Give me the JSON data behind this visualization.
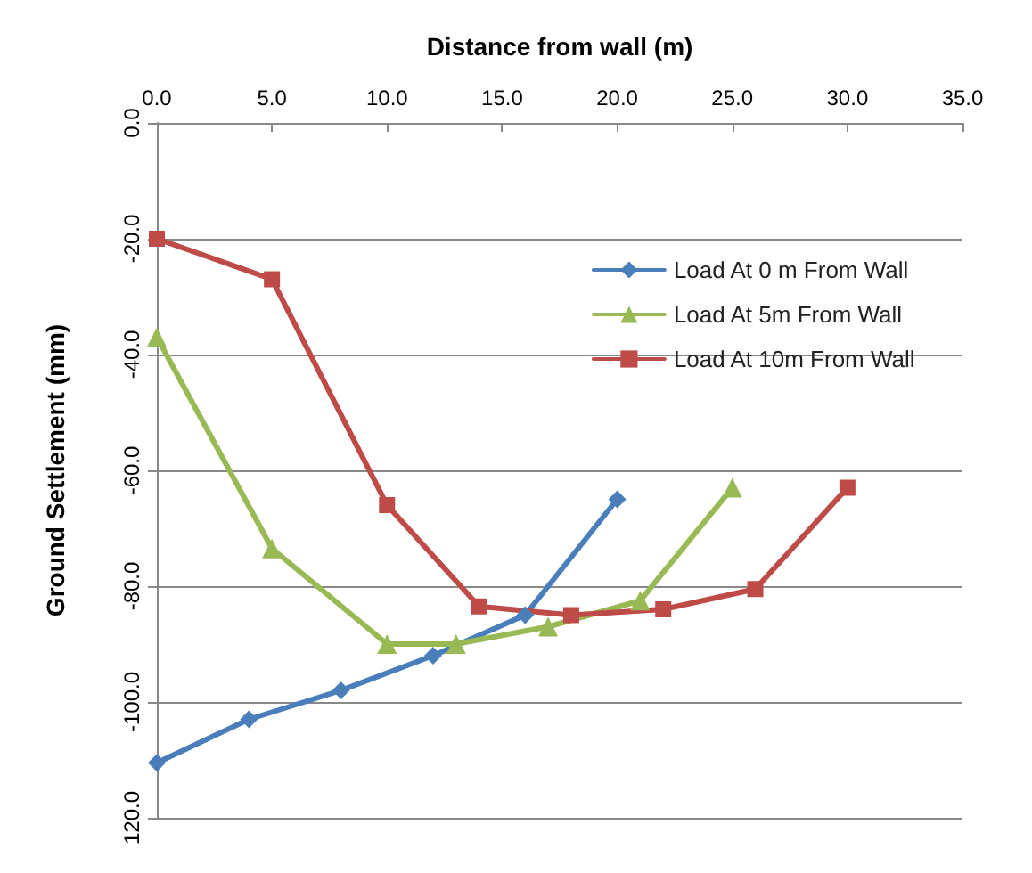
{
  "chart_data": {
    "type": "line",
    "xlabel": "Distance from wall (m)",
    "ylabel": "Ground Settlement (mm)",
    "xlim": [
      0,
      35
    ],
    "xticks": [
      {
        "value": 0,
        "label": "0.0"
      },
      {
        "value": 5,
        "label": "5.0"
      },
      {
        "value": 10,
        "label": "10.0"
      },
      {
        "value": 15,
        "label": "15.0"
      },
      {
        "value": 20,
        "label": "20.0"
      },
      {
        "value": 25,
        "label": "25.0"
      },
      {
        "value": 30,
        "label": "30.0"
      },
      {
        "value": 35,
        "label": "35.0"
      }
    ],
    "ylim": [
      -120,
      0
    ],
    "yticks": [
      {
        "value": -120,
        "label": "120.0"
      },
      {
        "value": -100,
        "label": "-100.0"
      },
      {
        "value": -80,
        "label": "-80.0"
      },
      {
        "value": -60,
        "label": "-60.0"
      },
      {
        "value": -40,
        "label": "-40.0"
      },
      {
        "value": -20,
        "label": "-20.0"
      },
      {
        "value": 0,
        "label": "0.0"
      }
    ],
    "grid": "y",
    "legend": "top right",
    "series": [
      {
        "name": "Load At 0 m From Wall",
        "color": "#4a7ebb",
        "marker": "diamond",
        "x": [
          0,
          4,
          8,
          12,
          16,
          20
        ],
        "values": [
          -110.5,
          -103,
          -98,
          -92,
          -85,
          -65
        ]
      },
      {
        "name": "Load At 5m From Wall",
        "color": "#98b954",
        "marker": "triangle",
        "x": [
          0,
          5,
          10,
          13,
          17,
          21,
          25
        ],
        "values": [
          -37,
          -73.5,
          -90,
          -90,
          -87,
          -82.5,
          -63
        ]
      },
      {
        "name": "Load At 10m From Wall",
        "color": "#be4b48",
        "marker": "square",
        "x": [
          0,
          5,
          10,
          14,
          18,
          22,
          26,
          30
        ],
        "values": [
          -20,
          -27,
          -66,
          -83.5,
          -85,
          -84,
          -80.5,
          -63
        ]
      }
    ]
  }
}
